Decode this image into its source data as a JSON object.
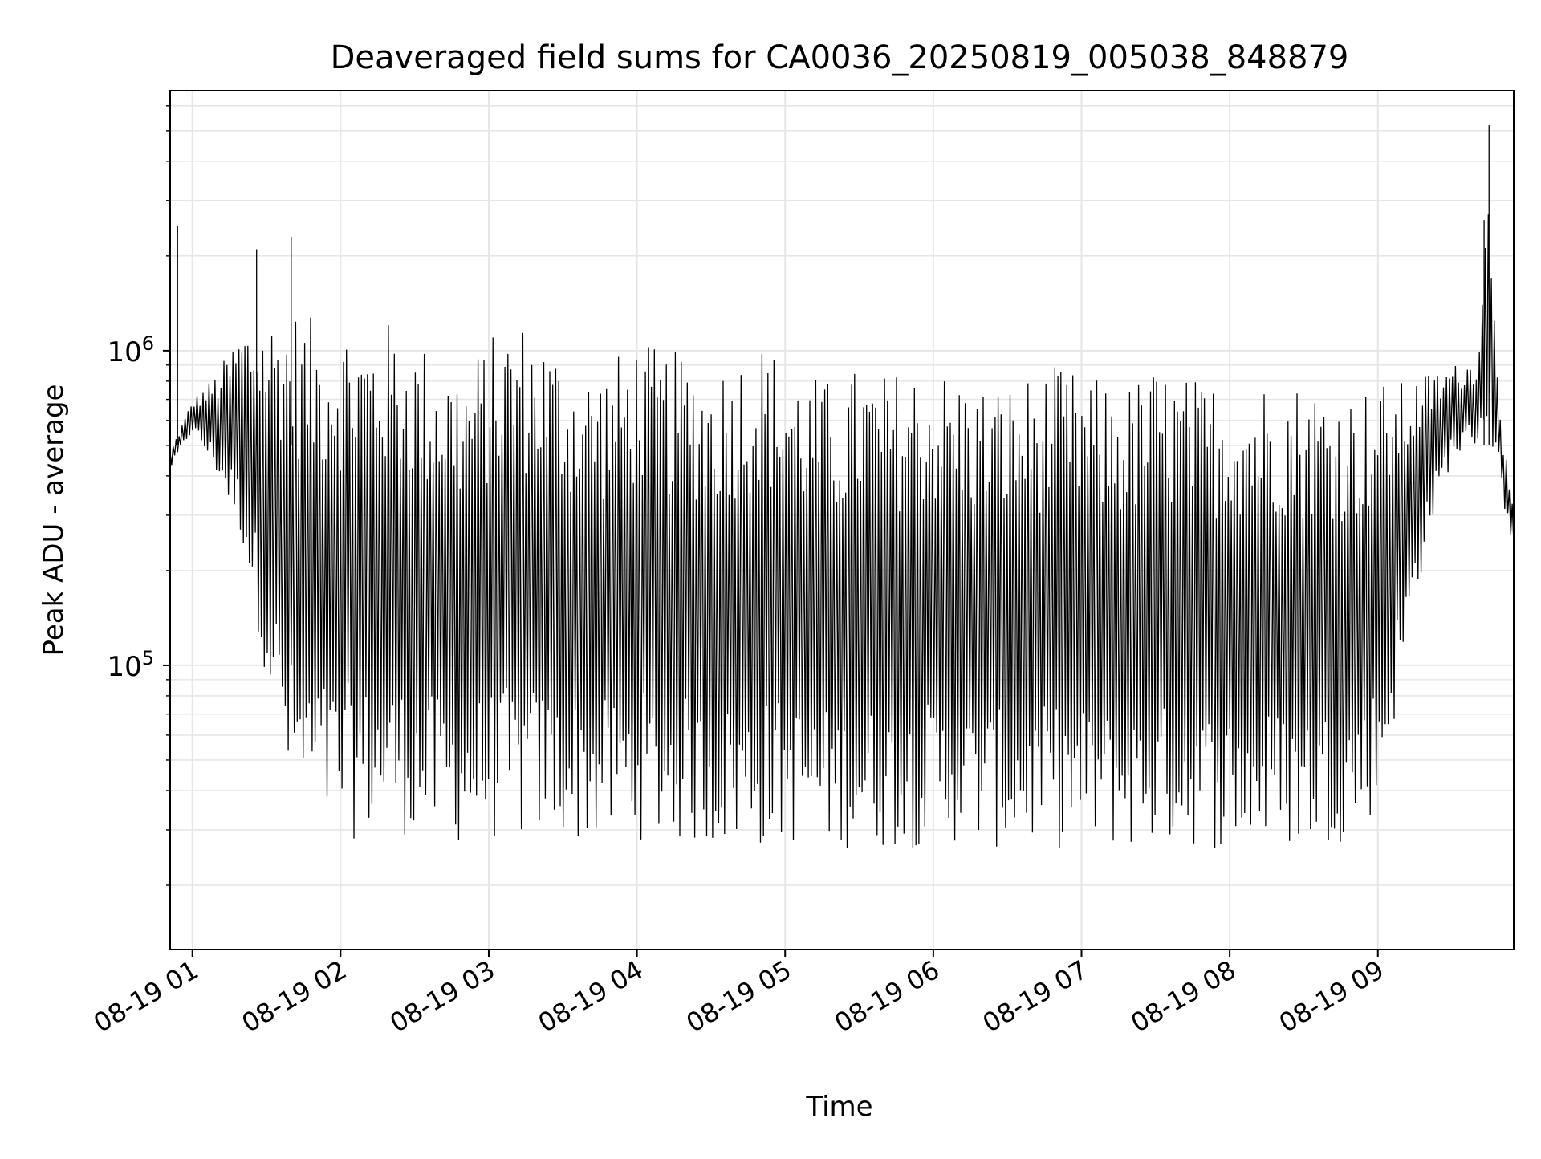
{
  "chart_data": {
    "type": "line",
    "title": "Deaveraged field sums for CA0036_20250819_005038_848879",
    "xlabel": "Time",
    "ylabel": "Peak ADU - average",
    "y_scale": "log",
    "ylim": [
      12500,
      6700000
    ],
    "xlim": [
      "2025-08-19 00:51",
      "2025-08-19 09:55"
    ],
    "grid": true,
    "x_ticks": [
      "08-19 01",
      "08-19 02",
      "08-19 03",
      "08-19 04",
      "08-19 05",
      "08-19 06",
      "08-19 07",
      "08-19 08",
      "08-19 09"
    ],
    "y_ticks": [
      {
        "base": "10",
        "exp": "5",
        "value": 100000
      },
      {
        "base": "10",
        "exp": "6",
        "value": 1000000
      }
    ],
    "line_color": "#000000",
    "series": [
      {
        "time": [
          "2025-08-19 00:51",
          "2025-08-19 01:00",
          "2025-08-19 01:10",
          "2025-08-19 01:20",
          "2025-08-19 01:30",
          "2025-08-19 01:40",
          "2025-08-19 01:50",
          "2025-08-19 02:00",
          "2025-08-19 02:10",
          "2025-08-19 02:20",
          "2025-08-19 02:30",
          "2025-08-19 02:40",
          "2025-08-19 02:50",
          "2025-08-19 03:00",
          "2025-08-19 03:10",
          "2025-08-19 03:20",
          "2025-08-19 03:30",
          "2025-08-19 03:40",
          "2025-08-19 03:50",
          "2025-08-19 04:00",
          "2025-08-19 04:10",
          "2025-08-19 04:20",
          "2025-08-19 04:30",
          "2025-08-19 04:40",
          "2025-08-19 04:50",
          "2025-08-19 05:00",
          "2025-08-19 05:10",
          "2025-08-19 05:20",
          "2025-08-19 05:30",
          "2025-08-19 05:40",
          "2025-08-19 05:50",
          "2025-08-19 06:00",
          "2025-08-19 06:10",
          "2025-08-19 06:20",
          "2025-08-19 06:30",
          "2025-08-19 06:40",
          "2025-08-19 06:50",
          "2025-08-19 07:00",
          "2025-08-19 07:10",
          "2025-08-19 07:20",
          "2025-08-19 07:30",
          "2025-08-19 07:40",
          "2025-08-19 07:50",
          "2025-08-19 08:00",
          "2025-08-19 08:10",
          "2025-08-19 08:20",
          "2025-08-19 08:30",
          "2025-08-19 08:40",
          "2025-08-19 08:50",
          "2025-08-19 09:00",
          "2025-08-19 09:10",
          "2025-08-19 09:20",
          "2025-08-19 09:30",
          "2025-08-19 09:40",
          "2025-08-19 09:45",
          "2025-08-19 09:50",
          "2025-08-19 09:55"
        ],
        "upper": [
          480000,
          700000,
          850000,
          1200000,
          1300000,
          1400000,
          1250000,
          1300000,
          1200000,
          1250000,
          1100000,
          1000000,
          900000,
          1100000,
          1300000,
          1200000,
          1000000,
          900000,
          950000,
          1100000,
          1000000,
          1000000,
          900000,
          1000000,
          1100000,
          950000,
          850000,
          800000,
          900000,
          850000,
          900000,
          900000,
          850000,
          800000,
          800000,
          850000,
          900000,
          850000,
          800000,
          800000,
          900000,
          850000,
          800000,
          850000,
          800000,
          850000,
          800000,
          800000,
          750000,
          800000,
          800000,
          850000,
          900000,
          950000,
          3500000,
          600000,
          300000
        ],
        "lower": [
          420000,
          550000,
          400000,
          250000,
          90000,
          35000,
          30000,
          28000,
          28000,
          30000,
          28000,
          27000,
          27000,
          28000,
          27000,
          28000,
          28000,
          27000,
          27000,
          28000,
          27000,
          27000,
          26000,
          26000,
          26000,
          27000,
          27000,
          26000,
          26000,
          26000,
          26000,
          27000,
          27000,
          26000,
          26000,
          26000,
          26000,
          26000,
          26000,
          26000,
          26000,
          27000,
          26000,
          26000,
          26000,
          26000,
          26000,
          27000,
          28000,
          35000,
          90000,
          250000,
          450000,
          500000,
          550000,
          350000,
          230000
        ]
      }
    ]
  }
}
